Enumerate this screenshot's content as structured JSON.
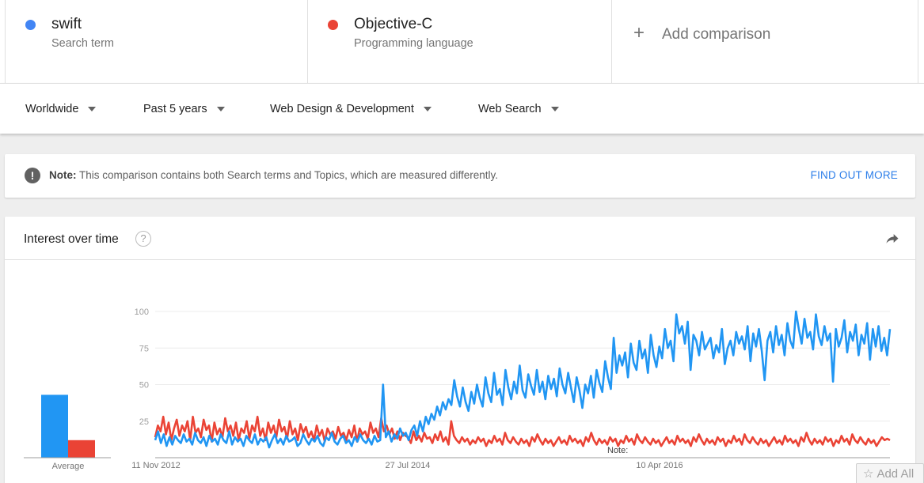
{
  "terms": [
    {
      "name": "swift",
      "type": "Search term",
      "color": "#4285f4"
    },
    {
      "name": "Objective-C",
      "type": "Programming language",
      "color": "#ea4335"
    }
  ],
  "add_comparison": {
    "plus": "+",
    "label": "Add comparison"
  },
  "filters": {
    "region": "Worldwide",
    "time": "Past 5 years",
    "category": "Web Design & Development",
    "search_type": "Web Search"
  },
  "note": {
    "bold": "Note:",
    "text": " This comparison contains both Search terms and Topics, which are measured differently.",
    "link": "FIND OUT MORE"
  },
  "interest": {
    "title": "Interest over time",
    "help": "?",
    "average_label": "Average",
    "annotation": "Note:",
    "add_all": "Add All"
  },
  "chart_data": {
    "type": "line",
    "y_ticks": [
      "100",
      "75",
      "50",
      "25"
    ],
    "ylim": [
      0,
      100
    ],
    "x_tick_labels": [
      "11 Nov 2012",
      "27 Jul 2014",
      "10 Apr 2016"
    ],
    "average": {
      "swift": 43,
      "Objective-C": 12
    },
    "series": [
      {
        "name": "swift",
        "color": "#2196f3",
        "values": [
          12,
          18,
          10,
          16,
          8,
          14,
          9,
          15,
          12,
          10,
          16,
          11,
          13,
          9,
          17,
          12,
          10,
          14,
          8,
          15,
          11,
          13,
          9,
          16,
          12,
          10,
          18,
          9,
          14,
          11,
          13,
          8,
          15,
          12,
          10,
          16,
          9,
          13,
          11,
          14,
          7,
          12,
          16,
          10,
          13,
          9,
          15,
          11,
          12,
          14,
          8,
          10,
          16,
          12,
          9,
          13,
          11,
          15,
          10,
          8,
          14,
          12,
          17,
          11,
          9,
          13,
          15,
          10,
          12,
          8,
          14,
          11,
          16,
          12,
          10,
          13,
          9,
          15,
          11,
          12,
          50,
          14,
          18,
          11,
          16,
          13,
          20,
          15,
          17,
          12,
          19,
          22,
          15,
          25,
          18,
          28,
          23,
          30,
          26,
          35,
          29,
          38,
          33,
          40,
          36,
          53,
          42,
          35,
          48,
          38,
          32,
          45,
          37,
          50,
          41,
          35,
          55,
          44,
          38,
          58,
          43,
          47,
          36,
          60,
          48,
          40,
          52,
          44,
          63,
          46,
          41,
          57,
          49,
          43,
          60,
          45,
          52,
          40,
          56,
          47,
          54,
          42,
          61,
          50,
          44,
          58,
          48,
          38,
          55,
          46,
          34,
          50,
          44,
          56,
          41,
          60,
          51,
          45,
          66,
          55,
          47,
          82,
          58,
          70,
          63,
          72,
          55,
          78,
          65,
          60,
          80,
          68,
          74,
          58,
          84,
          70,
          62,
          76,
          68,
          88,
          75,
          80,
          66,
          98,
          85,
          90,
          78,
          93,
          60,
          84,
          80,
          70,
          86,
          74,
          78,
          82,
          68,
          77,
          72,
          88,
          64,
          75,
          80,
          70,
          86,
          78,
          83,
          74,
          90,
          66,
          85,
          76,
          88,
          73,
          53,
          80,
          86,
          72,
          90,
          77,
          84,
          70,
          92,
          80,
          75,
          100,
          88,
          78,
          95,
          82,
          86,
          74,
          98,
          83,
          77,
          90,
          80,
          85,
          52,
          88,
          76,
          82,
          94,
          72,
          86,
          80,
          91,
          70,
          84,
          78,
          92,
          67,
          88,
          76,
          90,
          73,
          82,
          70,
          88
        ],
        "note": ""
      },
      {
        "name": "Objective-C",
        "color": "#ea4335",
        "values": [
          14,
          22,
          18,
          28,
          16,
          24,
          12,
          20,
          26,
          15,
          22,
          18,
          25,
          12,
          28,
          17,
          20,
          14,
          26,
          19,
          22,
          11,
          24,
          16,
          20,
          14,
          27,
          18,
          22,
          15,
          24,
          12,
          20,
          17,
          25,
          13,
          22,
          18,
          28,
          15,
          20,
          12,
          24,
          17,
          22,
          14,
          26,
          18,
          21,
          13,
          25,
          16,
          20,
          12,
          23,
          17,
          21,
          14,
          18,
          12,
          22,
          15,
          19,
          11,
          20,
          16,
          18,
          13,
          21,
          15,
          17,
          12,
          19,
          14,
          22,
          11,
          20,
          16,
          18,
          13,
          24,
          17,
          20,
          14,
          27,
          18,
          22,
          16,
          20,
          13,
          18,
          12,
          17,
          15,
          14,
          10,
          18,
          12,
          15,
          11,
          17,
          13,
          14,
          10,
          16,
          12,
          18,
          11,
          14,
          9,
          25,
          15,
          12,
          10,
          14,
          11,
          13,
          9,
          12,
          10,
          14,
          11,
          13,
          8,
          12,
          10,
          15,
          11,
          13,
          9,
          17,
          12,
          10,
          14,
          11,
          9,
          13,
          10,
          12,
          8,
          14,
          11,
          16,
          12,
          9,
          13,
          10,
          12,
          8,
          11,
          14,
          10,
          12,
          9,
          15,
          11,
          13,
          10,
          12,
          8,
          14,
          11,
          17,
          12,
          9,
          13,
          10,
          12,
          9,
          14,
          11,
          13,
          8,
          12,
          10,
          15,
          11,
          13,
          9,
          16,
          12,
          10,
          14,
          11,
          9,
          13,
          10,
          12,
          8,
          11,
          14,
          10,
          12,
          9,
          15,
          11,
          13,
          10,
          12,
          8,
          14,
          11,
          16,
          12,
          9,
          13,
          10,
          12,
          9,
          14,
          11,
          13,
          8,
          12,
          10,
          15,
          11,
          13,
          9,
          16,
          12,
          10,
          14,
          11,
          9,
          13,
          10,
          12,
          8,
          11,
          14,
          10,
          12,
          9,
          15,
          11,
          13,
          10,
          12,
          8,
          14,
          11,
          17,
          12,
          9,
          13,
          10,
          12,
          9,
          14,
          11,
          13,
          8,
          12,
          10,
          15,
          11,
          13,
          9,
          16,
          12,
          10,
          14,
          11,
          9,
          13,
          10,
          12,
          8,
          11,
          14,
          12,
          13,
          12
        ],
        "note": ""
      }
    ]
  }
}
